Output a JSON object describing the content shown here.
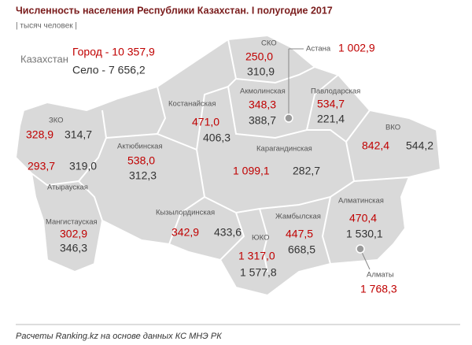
{
  "header": {
    "title": "Численность населения Республики Казахстан. I полугодие 2017",
    "subtitle": "| тысяч человек |"
  },
  "summary": {
    "label": "Казахстан",
    "city": "Город - 10 357,9",
    "village": "Село - 7 656,2"
  },
  "regions": [
    {
      "name": "СКО",
      "city": "250,0",
      "village": "310,9"
    },
    {
      "name": "Астана",
      "city": "1 002,9"
    },
    {
      "name": "Акмолинская",
      "city": "348,3",
      "village": "388,7"
    },
    {
      "name": "Павлодарская",
      "city": "534,7",
      "village": "221,4"
    },
    {
      "name": "Костанайская",
      "city": "471,0",
      "village": "406,3"
    },
    {
      "name": "ЗКО",
      "city": "328,9",
      "village": "314,7"
    },
    {
      "name": "Атырауская",
      "city": "293,7",
      "village": "319,0"
    },
    {
      "name": "Актюбинская",
      "city": "538,0",
      "village": "312,3"
    },
    {
      "name": "Карагандинская",
      "city": "1 099,1",
      "village": "282,7"
    },
    {
      "name": "ВКО",
      "city": "842,4",
      "village": "544,2"
    },
    {
      "name": "Мангистауская",
      "city": "302,9",
      "village": "346,3"
    },
    {
      "name": "Кызылординская",
      "city": "342,9",
      "village": "433,6"
    },
    {
      "name": "ЮКО",
      "city": "1 317,0",
      "village": "1 577,8"
    },
    {
      "name": "Жамбылская",
      "city": "447,5",
      "village": "668,5"
    },
    {
      "name": "Алматинская",
      "city": "470,4",
      "village": "1 530,1"
    },
    {
      "name": "Алматы",
      "city": "1 768,3"
    }
  ],
  "footer": {
    "source": "Расчеты Ranking.kz на основе данных КС МНЭ РК"
  }
}
